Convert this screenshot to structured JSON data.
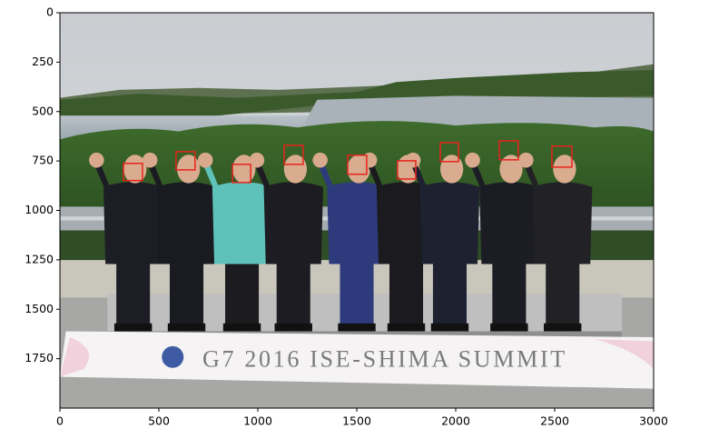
{
  "chart_data": {
    "type": "image",
    "banner_text": "G7 2016 ISE-SHIMA SUMMIT",
    "xlim": [
      0,
      3000
    ],
    "ylim": [
      2000,
      0
    ],
    "xticks": [
      0,
      500,
      1000,
      1500,
      2000,
      2500,
      3000
    ],
    "yticks": [
      0,
      250,
      500,
      750,
      1000,
      1250,
      1500,
      1750
    ],
    "box_color": "#e8231c",
    "boxes": [
      [
        321,
        762,
        96,
        87
      ],
      [
        587,
        703,
        96,
        92
      ],
      [
        872,
        767,
        92,
        92
      ],
      [
        1133,
        671,
        96,
        96
      ],
      [
        1454,
        721,
        96,
        96
      ],
      [
        1706,
        749,
        92,
        92
      ],
      [
        1922,
        657,
        92,
        96
      ],
      [
        2220,
        648,
        96,
        96
      ],
      [
        2486,
        675,
        101,
        106
      ]
    ]
  }
}
